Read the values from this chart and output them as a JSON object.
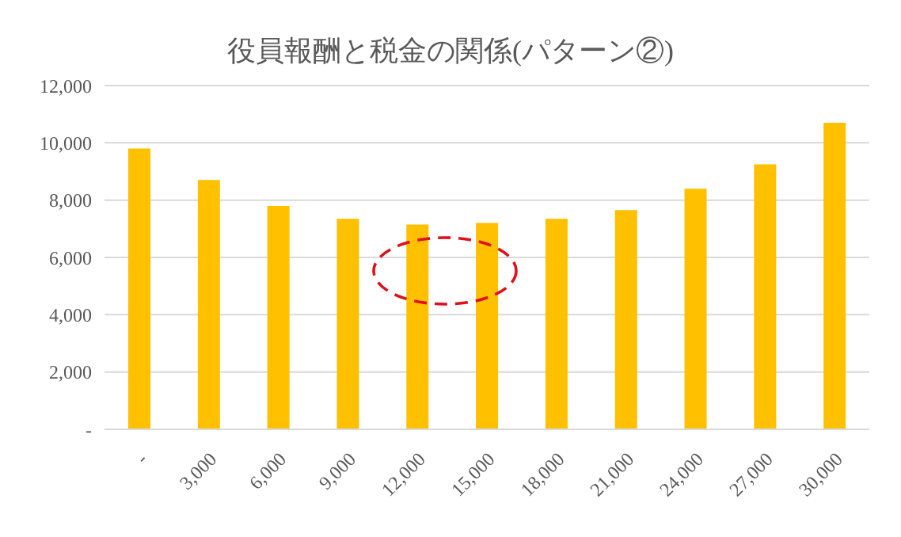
{
  "chart_data": {
    "type": "bar",
    "title": "役員報酬と税金の関係(パターン②)",
    "categories": [
      "-",
      "3,000",
      "6,000",
      "9,000",
      "12,000",
      "15,000",
      "18,000",
      "21,000",
      "24,000",
      "27,000",
      "30,000"
    ],
    "values": [
      9800,
      8700,
      7800,
      7350,
      7150,
      7200,
      7350,
      7650,
      8400,
      9250,
      10700
    ],
    "color": "#ffc000",
    "ylim": [
      0,
      12000
    ],
    "yticks": [
      {
        "value": 0,
        "label": "-"
      },
      {
        "value": 2000,
        "label": "2,000"
      },
      {
        "value": 4000,
        "label": "4,000"
      },
      {
        "value": 6000,
        "label": "6,000"
      },
      {
        "value": 8000,
        "label": "8,000"
      },
      {
        "value": 10000,
        "label": "10,000"
      },
      {
        "value": 12000,
        "label": "12,000"
      }
    ],
    "grid": "y"
  }
}
